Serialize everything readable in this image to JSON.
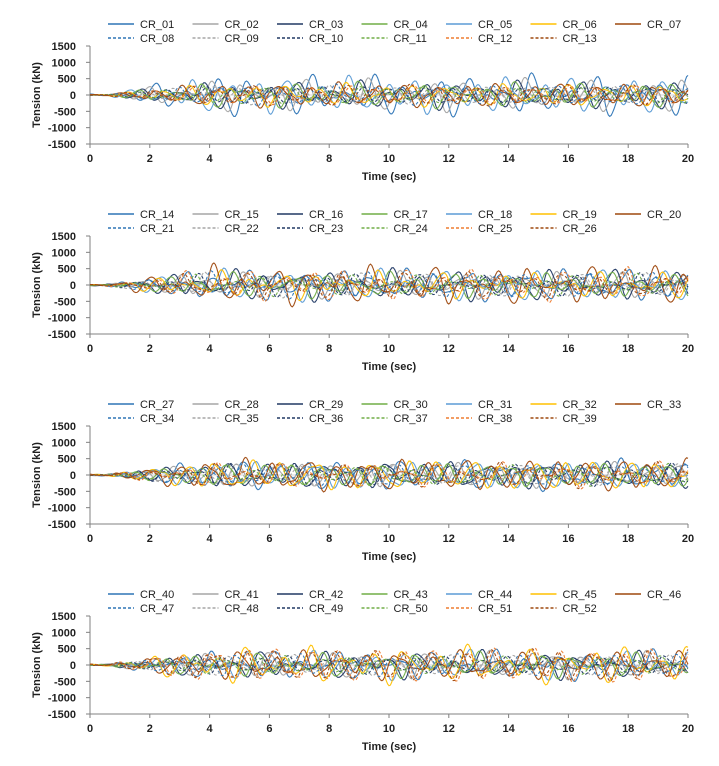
{
  "chart_data": [
    {
      "type": "line",
      "xlabel": "Time (sec)",
      "ylabel": "Tension (kN)",
      "xlim": [
        0,
        20
      ],
      "ylim": [
        -1500,
        1500
      ],
      "xticks": [
        0,
        2,
        4,
        6,
        8,
        10,
        12,
        14,
        16,
        18,
        20
      ],
      "yticks": [
        1500,
        1000,
        500,
        0,
        -500,
        -1000,
        -1500
      ],
      "grid": false,
      "legend_position": "top",
      "series": [
        {
          "name": "CR_01",
          "color": "#2E75B6",
          "dash": "solid",
          "amp": 600,
          "seed": 1.1
        },
        {
          "name": "CR_02",
          "color": "#A5A5A5",
          "dash": "solid",
          "amp": 480,
          "seed": 2.3
        },
        {
          "name": "CR_03",
          "color": "#203864",
          "dash": "solid",
          "amp": 420,
          "seed": 3.7
        },
        {
          "name": "CR_04",
          "color": "#70AD47",
          "dash": "solid",
          "amp": 380,
          "seed": 4.2
        },
        {
          "name": "CR_05",
          "color": "#5B9BD5",
          "dash": "solid",
          "amp": 560,
          "seed": 5.9
        },
        {
          "name": "CR_06",
          "color": "#FFC000",
          "dash": "solid",
          "amp": 360,
          "seed": 6.4
        },
        {
          "name": "CR_07",
          "color": "#9E480E",
          "dash": "solid",
          "amp": 400,
          "seed": 7.8
        },
        {
          "name": "CR_08",
          "color": "#2E75B6",
          "dash": "dashed",
          "amp": 340,
          "seed": 8.3
        },
        {
          "name": "CR_09",
          "color": "#A5A5A5",
          "dash": "dashed",
          "amp": 320,
          "seed": 9.5
        },
        {
          "name": "CR_10",
          "color": "#203864",
          "dash": "dashed",
          "amp": 300,
          "seed": 10.6
        },
        {
          "name": "CR_11",
          "color": "#70AD47",
          "dash": "dashed",
          "amp": 310,
          "seed": 11.2
        },
        {
          "name": "CR_12",
          "color": "#ED7D31",
          "dash": "dashed",
          "amp": 330,
          "seed": 12.9
        },
        {
          "name": "CR_13",
          "color": "#9E480E",
          "dash": "dashed",
          "amp": 350,
          "seed": 13.4
        }
      ]
    },
    {
      "type": "line",
      "xlabel": "Time (sec)",
      "ylabel": "Tension (kN)",
      "xlim": [
        0,
        20
      ],
      "ylim": [
        -1500,
        1500
      ],
      "xticks": [
        0,
        2,
        4,
        6,
        8,
        10,
        12,
        14,
        16,
        18,
        20
      ],
      "yticks": [
        1500,
        1000,
        500,
        0,
        -500,
        -1000,
        -1500
      ],
      "grid": false,
      "legend_position": "top",
      "series": [
        {
          "name": "CR_14",
          "color": "#2E75B6",
          "dash": "solid",
          "amp": 520,
          "seed": 14.1
        },
        {
          "name": "CR_15",
          "color": "#A5A5A5",
          "dash": "solid",
          "amp": 420,
          "seed": 15.3
        },
        {
          "name": "CR_16",
          "color": "#203864",
          "dash": "solid",
          "amp": 480,
          "seed": 16.7
        },
        {
          "name": "CR_17",
          "color": "#70AD47",
          "dash": "solid",
          "amp": 380,
          "seed": 17.2
        },
        {
          "name": "CR_18",
          "color": "#5B9BD5",
          "dash": "solid",
          "amp": 450,
          "seed": 18.9
        },
        {
          "name": "CR_19",
          "color": "#FFC000",
          "dash": "solid",
          "amp": 400,
          "seed": 19.4
        },
        {
          "name": "CR_20",
          "color": "#9E480E",
          "dash": "solid",
          "amp": 560,
          "seed": 20.8
        },
        {
          "name": "CR_21",
          "color": "#2E75B6",
          "dash": "dashed",
          "amp": 360,
          "seed": 21.3
        },
        {
          "name": "CR_22",
          "color": "#A5A5A5",
          "dash": "dashed",
          "amp": 340,
          "seed": 22.5
        },
        {
          "name": "CR_23",
          "color": "#203864",
          "dash": "dashed",
          "amp": 330,
          "seed": 23.6
        },
        {
          "name": "CR_24",
          "color": "#70AD47",
          "dash": "dashed",
          "amp": 320,
          "seed": 24.2
        },
        {
          "name": "CR_25",
          "color": "#ED7D31",
          "dash": "dashed",
          "amp": 500,
          "seed": 25.9
        },
        {
          "name": "CR_26",
          "color": "#9E480E",
          "dash": "dashed",
          "amp": 420,
          "seed": 26.4
        }
      ]
    },
    {
      "type": "line",
      "xlabel": "Time (sec)",
      "ylabel": "Tension (kN)",
      "xlim": [
        0,
        20
      ],
      "ylim": [
        -1500,
        1500
      ],
      "xticks": [
        0,
        2,
        4,
        6,
        8,
        10,
        12,
        14,
        16,
        18,
        20
      ],
      "yticks": [
        1500,
        1000,
        500,
        0,
        -500,
        -1000,
        -1500
      ],
      "grid": false,
      "legend_position": "top",
      "series": [
        {
          "name": "CR_27",
          "color": "#2E75B6",
          "dash": "solid",
          "amp": 480,
          "seed": 27.1
        },
        {
          "name": "CR_28",
          "color": "#A5A5A5",
          "dash": "solid",
          "amp": 400,
          "seed": 28.3
        },
        {
          "name": "CR_29",
          "color": "#203864",
          "dash": "solid",
          "amp": 440,
          "seed": 29.7
        },
        {
          "name": "CR_30",
          "color": "#70AD47",
          "dash": "solid",
          "amp": 380,
          "seed": 30.2
        },
        {
          "name": "CR_31",
          "color": "#5B9BD5",
          "dash": "solid",
          "amp": 460,
          "seed": 31.9
        },
        {
          "name": "CR_32",
          "color": "#FFC000",
          "dash": "solid",
          "amp": 500,
          "seed": 32.4
        },
        {
          "name": "CR_33",
          "color": "#9E480E",
          "dash": "solid",
          "amp": 540,
          "seed": 33.8
        },
        {
          "name": "CR_34",
          "color": "#2E75B6",
          "dash": "dashed",
          "amp": 340,
          "seed": 34.3
        },
        {
          "name": "CR_35",
          "color": "#A5A5A5",
          "dash": "dashed",
          "amp": 320,
          "seed": 35.5
        },
        {
          "name": "CR_36",
          "color": "#203864",
          "dash": "dashed",
          "amp": 330,
          "seed": 36.6
        },
        {
          "name": "CR_37",
          "color": "#70AD47",
          "dash": "dashed",
          "amp": 310,
          "seed": 37.2
        },
        {
          "name": "CR_38",
          "color": "#ED7D31",
          "dash": "dashed",
          "amp": 360,
          "seed": 38.9
        },
        {
          "name": "CR_39",
          "color": "#9E480E",
          "dash": "dashed",
          "amp": 350,
          "seed": 39.4
        }
      ]
    },
    {
      "type": "line",
      "xlabel": "Time (sec)",
      "ylabel": "Tension (kN)",
      "xlim": [
        0,
        20
      ],
      "ylim": [
        -1500,
        1500
      ],
      "xticks": [
        0,
        2,
        4,
        6,
        8,
        10,
        12,
        14,
        16,
        18,
        20
      ],
      "yticks": [
        1500,
        1000,
        500,
        0,
        -500,
        -1000,
        -1500
      ],
      "grid": false,
      "legend_position": "top",
      "series": [
        {
          "name": "CR_40",
          "color": "#2E75B6",
          "dash": "solid",
          "amp": 420,
          "seed": 40.1
        },
        {
          "name": "CR_41",
          "color": "#A5A5A5",
          "dash": "solid",
          "amp": 380,
          "seed": 41.3
        },
        {
          "name": "CR_42",
          "color": "#203864",
          "dash": "solid",
          "amp": 400,
          "seed": 42.7
        },
        {
          "name": "CR_43",
          "color": "#70AD47",
          "dash": "solid",
          "amp": 360,
          "seed": 43.2
        },
        {
          "name": "CR_44",
          "color": "#5B9BD5",
          "dash": "solid",
          "amp": 420,
          "seed": 44.9
        },
        {
          "name": "CR_45",
          "color": "#FFC000",
          "dash": "solid",
          "amp": 560,
          "seed": 45.4
        },
        {
          "name": "CR_46",
          "color": "#9E480E",
          "dash": "solid",
          "amp": 440,
          "seed": 46.8
        },
        {
          "name": "CR_47",
          "color": "#2E75B6",
          "dash": "dashed",
          "amp": 330,
          "seed": 47.3
        },
        {
          "name": "CR_48",
          "color": "#A5A5A5",
          "dash": "dashed",
          "amp": 320,
          "seed": 48.5
        },
        {
          "name": "CR_49",
          "color": "#203864",
          "dash": "dashed",
          "amp": 300,
          "seed": 49.6
        },
        {
          "name": "CR_50",
          "color": "#70AD47",
          "dash": "dashed",
          "amp": 310,
          "seed": 50.2
        },
        {
          "name": "CR_51",
          "color": "#ED7D31",
          "dash": "dashed",
          "amp": 600,
          "seed": 51.9
        },
        {
          "name": "CR_52",
          "color": "#9E480E",
          "dash": "dashed",
          "amp": 560,
          "seed": 52.4
        }
      ]
    }
  ]
}
